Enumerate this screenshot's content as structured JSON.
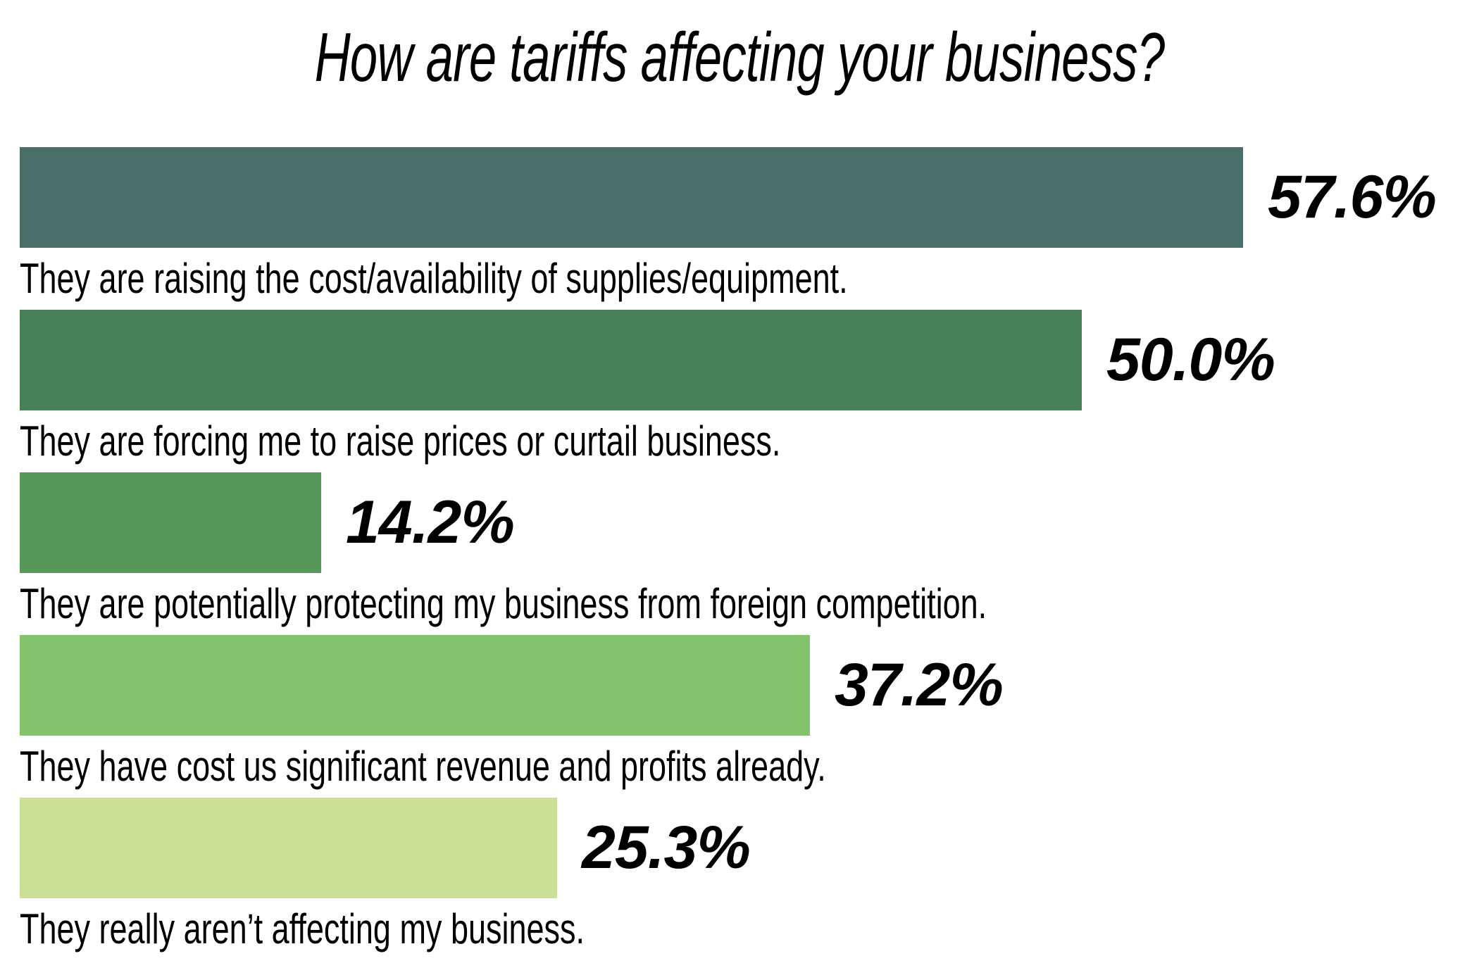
{
  "page": {
    "background": "#ffffff",
    "text_color": "#000000"
  },
  "header": {
    "title": "How are tariffs affecting your business?"
  },
  "chart_data": {
    "type": "bar",
    "orientation": "horizontal",
    "title": "How are tariffs affecting your business?",
    "categories": [
      "They are raising the cost/availability of supplies/equipment.",
      "They are forcing me to raise prices or curtail business.",
      "They are potentially protecting my business from foreign competition.",
      "They have cost us significant revenue and profits already.",
      "They really aren’t affecting my business."
    ],
    "values": [
      57.6,
      50.0,
      14.2,
      37.2,
      25.3
    ],
    "value_labels": [
      "57.6%",
      "50.0%",
      "14.2%",
      "37.2%",
      "25.3%"
    ],
    "bar_colors": [
      "#4a6f68",
      "#478059",
      "#58975a",
      "#85c26e",
      "#cbdf96"
    ],
    "xlabel": "",
    "ylabel": "",
    "xlim": [
      0,
      68.7
    ],
    "grid": false,
    "legend": false,
    "value_label_position": "right-of-bar",
    "category_label_position": "below-bar"
  }
}
